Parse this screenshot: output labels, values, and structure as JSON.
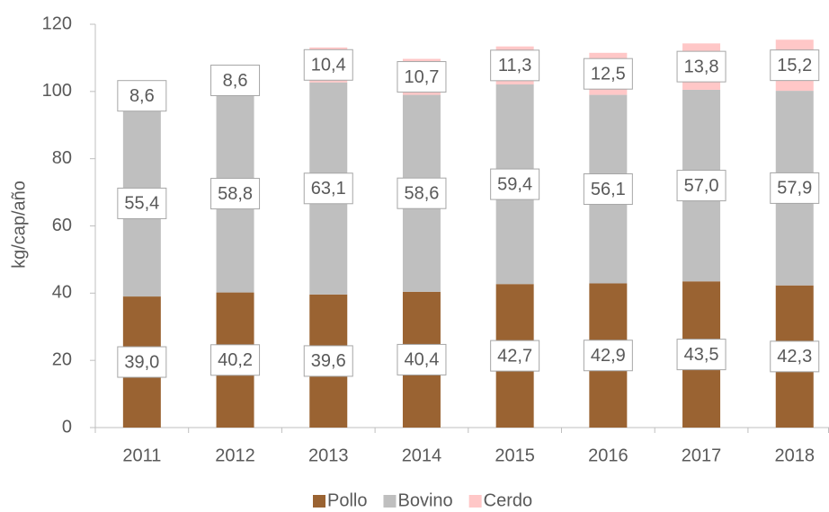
{
  "chart_data": {
    "type": "stacked_bar",
    "y_label": "kg/cap/año",
    "categories": [
      "2011",
      "2012",
      "2013",
      "2014",
      "2015",
      "2016",
      "2017",
      "2018"
    ],
    "series": [
      {
        "name": "Pollo",
        "color": "#9a6332",
        "values": [
          39.0,
          40.2,
          39.6,
          40.4,
          42.7,
          42.9,
          43.5,
          42.3
        ],
        "value_labels": [
          "39,0",
          "40,2",
          "39,6",
          "40,4",
          "42,7",
          "42,9",
          "43,5",
          "42,3"
        ]
      },
      {
        "name": "Bovino",
        "color": "#bfbfbf",
        "values": [
          55.4,
          58.8,
          63.1,
          58.6,
          59.4,
          56.1,
          57.0,
          57.9
        ],
        "value_labels": [
          "55,4",
          "58,8",
          "63,1",
          "58,6",
          "59,4",
          "56,1",
          "57,0",
          "57,9"
        ]
      },
      {
        "name": "Cerdo",
        "color": "#ffc7c7",
        "values": [
          8.6,
          8.6,
          10.4,
          10.7,
          11.3,
          12.5,
          13.8,
          15.2
        ],
        "value_labels": [
          "8,6",
          "8,6",
          "10,4",
          "10,7",
          "11,3",
          "12,5",
          "13,8",
          "15,2"
        ]
      }
    ],
    "ylim": [
      0,
      120
    ],
    "yticks": [
      0,
      20,
      40,
      60,
      80,
      100,
      120
    ],
    "legend": "bottom"
  }
}
